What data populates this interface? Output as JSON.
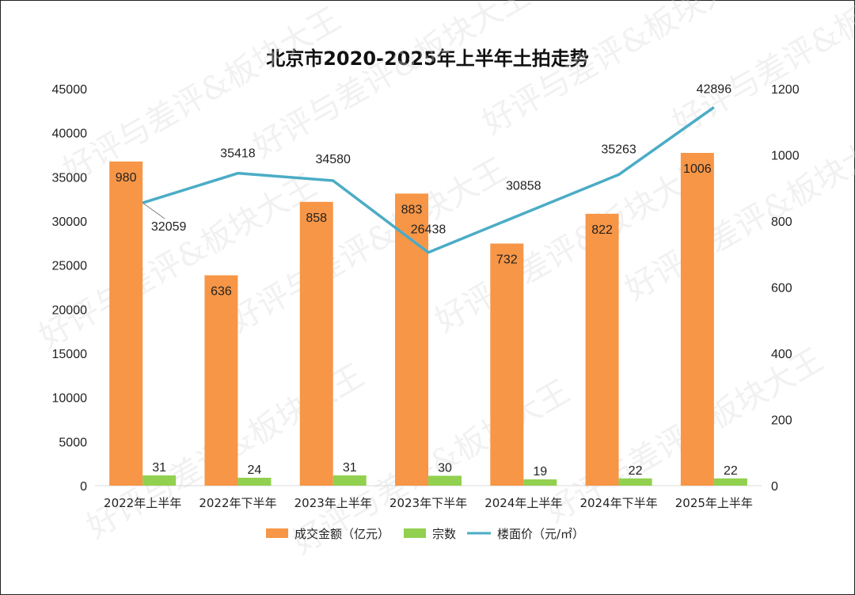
{
  "chart_data": {
    "type": "bar",
    "title": "北京市2020-2025年上半年土拍走势",
    "categories": [
      "2022年上半年",
      "2022年下半年",
      "2023年上半年",
      "2023年下半年",
      "2024年上半年",
      "2024年下半年",
      "2025年上半年"
    ],
    "left_axis": {
      "ylim": [
        0,
        45000
      ],
      "ticks": [
        0,
        5000,
        10000,
        15000,
        20000,
        25000,
        30000,
        35000,
        40000,
        45000
      ]
    },
    "right_axis": {
      "ylim": [
        0,
        1200
      ],
      "ticks": [
        0,
        200,
        400,
        600,
        800,
        1000,
        1200
      ]
    },
    "series": [
      {
        "name": "成交金额（亿元）",
        "type": "bar",
        "axis": "right",
        "color": "#f79646",
        "values": [
          980,
          636,
          858,
          883,
          732,
          822,
          1006
        ]
      },
      {
        "name": "宗数",
        "type": "bar",
        "axis": "right",
        "color": "#92d050",
        "values": [
          31,
          24,
          31,
          30,
          19,
          22,
          22
        ]
      },
      {
        "name": "楼面价（元/㎡）",
        "type": "line",
        "axis": "left",
        "color": "#4bacc6",
        "values": [
          32059,
          35418,
          34580,
          26438,
          30858,
          35263,
          42896
        ]
      }
    ],
    "grid": false,
    "legend": "bottom"
  },
  "watermark": "好评与差评&板块大王"
}
